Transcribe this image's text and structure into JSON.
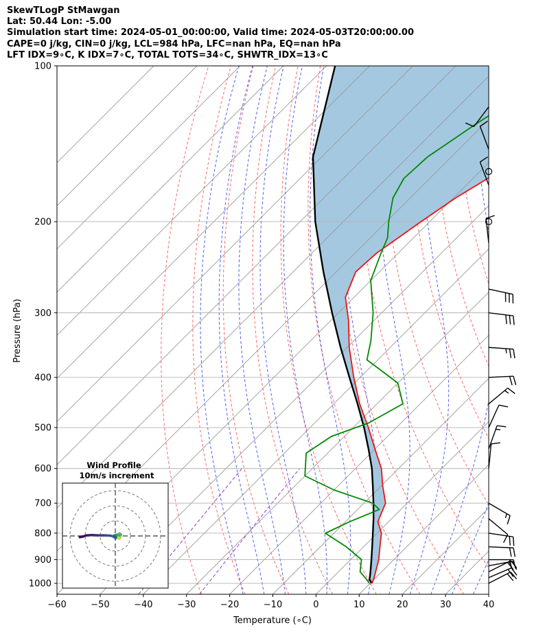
{
  "title_lines": [
    "SkewTLogP StMawgan",
    "Lat: 50.44   Lon: -5.00",
    "Simulation start time: 2024-05-01_00:00:00, Valid time: 2024-05-03T20:00:00.00",
    "CAPE=0 j/kg, CIN=0 j/kg, LCL=984 hPa, LFC=nan hPa, EQ=nan hPa",
    "LFT IDX=9∘C, K IDX=7∘C, TOTAL TOTS=34∘C, SHWTR_IDX=13∘C"
  ],
  "chart_data": {
    "type": "skewt-logp",
    "xlabel": "Temperature (∘C)",
    "ylabel": "Pressure (hPa)",
    "xlim": [
      -60,
      40
    ],
    "ylim": [
      1050,
      100
    ],
    "x_ticks": [
      "−60",
      "−50",
      "−40",
      "−30",
      "−20",
      "−10",
      "0",
      "10",
      "20",
      "30",
      "40"
    ],
    "x_tick_values": [
      -60,
      -50,
      -40,
      -30,
      -20,
      -10,
      0,
      10,
      20,
      30,
      40
    ],
    "y_ticks": [
      "100",
      "200",
      "300",
      "400",
      "500",
      "600",
      "700",
      "800",
      "900",
      "1000"
    ],
    "y_tick_values": [
      100,
      200,
      300,
      400,
      500,
      600,
      700,
      800,
      900,
      1000
    ],
    "grid": true,
    "colors": {
      "temperature": "#ee1111",
      "dewpoint": "#008800",
      "parcel": "#000000",
      "shade": "#a4c8e0",
      "dry_adiabat": "#ff4d4d",
      "moist_adiabat": "#3344ee",
      "mixing_ratio": "#8822cc",
      "isotherm": "#999999"
    },
    "temperature_profile": {
      "p": [
        1000,
        980,
        950,
        900,
        850,
        800,
        760,
        700,
        650,
        600,
        550,
        500,
        450,
        400,
        350,
        310,
        280,
        250,
        230,
        200,
        180,
        160,
        140,
        120,
        110,
        100
      ],
      "t": [
        10.4,
        9.8,
        8.6,
        6.5,
        3.8,
        1.0,
        -2.5,
        -5.0,
        -9.5,
        -14.0,
        -20.0,
        -26.5,
        -34.0,
        -41.5,
        -49.5,
        -56.0,
        -62.0,
        -65.5,
        -65.0,
        -62.0,
        -59.5,
        -55.5,
        -52.0,
        -49.0,
        -47.5,
        -46.5
      ]
    },
    "dewpoint_profile": {
      "p": [
        1000,
        980,
        950,
        900,
        850,
        800,
        760,
        720,
        700,
        660,
        620,
        560,
        520,
        490,
        450,
        410,
        370,
        340,
        300,
        260,
        230,
        215,
        200,
        180,
        165,
        150,
        130,
        115,
        100
      ],
      "t": [
        9.8,
        8.0,
        5.0,
        2.5,
        -4.0,
        -12.0,
        -9.0,
        -5.0,
        -8.0,
        -20.0,
        -30.0,
        -35.0,
        -33.0,
        -27.5,
        -24.0,
        -30.0,
        -42.5,
        -46.0,
        -52.0,
        -60.0,
        -64.0,
        -66.0,
        -69.5,
        -74.0,
        -76.0,
        -75.5,
        -72.0,
        -68.5,
        -65.0
      ]
    },
    "parcel_profile": {
      "p": [
        1000,
        984,
        950,
        900,
        850,
        800,
        750,
        700,
        650,
        600,
        550,
        500,
        450,
        400,
        350,
        300,
        250,
        200,
        150,
        100
      ],
      "t": [
        10.4,
        9.0,
        7.4,
        4.8,
        2.0,
        -1.0,
        -4.2,
        -7.8,
        -11.8,
        -16.2,
        -21.5,
        -27.5,
        -34.5,
        -42.5,
        -51.5,
        -61.5,
        -73.0,
        -86.5,
        -102.0,
        -118.0
      ]
    },
    "wind_barbs": [
      {
        "p": 1000,
        "u": -9.7,
        "v": -5.0
      },
      {
        "p": 975,
        "u": -10.5,
        "v": -4.5
      },
      {
        "p": 950,
        "u": -10.0,
        "v": -5.0
      },
      {
        "p": 925,
        "u": -10.8,
        "v": -2.0
      },
      {
        "p": 900,
        "u": -11.0,
        "v": 0.0
      },
      {
        "p": 850,
        "u": -11.5,
        "v": 0.5
      },
      {
        "p": 800,
        "u": -10.0,
        "v": 1.5
      },
      {
        "p": 750,
        "u": -3.0,
        "v": 2.5
      },
      {
        "p": 700,
        "u": -6.0,
        "v": 3.5
      },
      {
        "p": 600,
        "u": -0.5,
        "v": -5.0
      },
      {
        "p": 550,
        "u": -2.5,
        "v": -7.0
      },
      {
        "p": 500,
        "u": -2.5,
        "v": -5.5
      },
      {
        "p": 450,
        "u": -6.0,
        "v": -5.0
      },
      {
        "p": 400,
        "u": -10.0,
        "v": -0.5
      },
      {
        "p": 350,
        "u": -14.0,
        "v": 1.0
      },
      {
        "p": 300,
        "u": -16.0,
        "v": 2.0
      },
      {
        "p": 270,
        "u": -14.0,
        "v": 3.0
      },
      {
        "p": 220,
        "u": 0.5,
        "v": -4.5
      },
      {
        "p": 200,
        "u": 0.0,
        "v": 0.0
      },
      {
        "p": 170,
        "u": 1.5,
        "v": -4.0
      },
      {
        "p": 160,
        "u": 0.0,
        "v": 0.0
      },
      {
        "p": 145,
        "u": 1.5,
        "v": -4.0
      },
      {
        "p": 120,
        "u": 3.0,
        "v": 4.0
      }
    ],
    "hodograph": {
      "title": "Wind Profile",
      "subtitle": "10m/s increment",
      "rings": [
        10,
        20,
        30
      ],
      "colormap": [
        "#440154",
        "#3b528b",
        "#21918c",
        "#5ec962",
        "#fde725"
      ],
      "u": [
        0.5,
        1.2,
        2.8,
        3.5,
        2.7,
        1.8,
        3.0,
        3.8,
        2.5,
        0.8,
        -0.3,
        -0.8,
        -1.2,
        0.2,
        0.5,
        -0.5,
        -3.5,
        -7.5,
        -11.5,
        -15.5,
        -19.0,
        -21.5,
        -23.5
      ],
      "v": [
        -0.3,
        -1.2,
        -1.8,
        -0.5,
        0.6,
        1.2,
        1.7,
        0.8,
        0.3,
        0.7,
        0.5,
        0.2,
        -0.5,
        -1.6,
        -0.8,
        -0.4,
        0.2,
        0.4,
        0.4,
        0.6,
        0.4,
        -0.4,
        -0.8
      ]
    }
  }
}
